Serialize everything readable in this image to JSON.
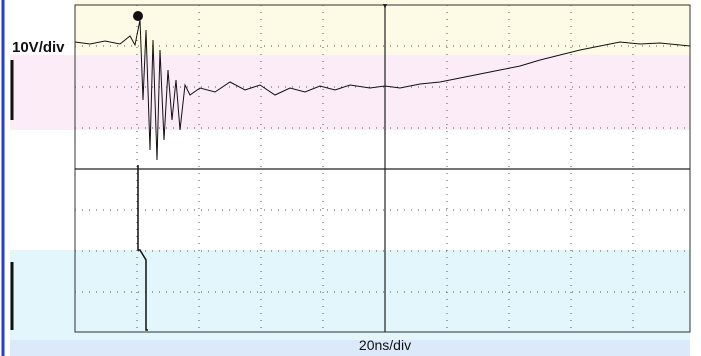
{
  "channel_scale": "10V/div",
  "timebase": "20ns/div"
}
